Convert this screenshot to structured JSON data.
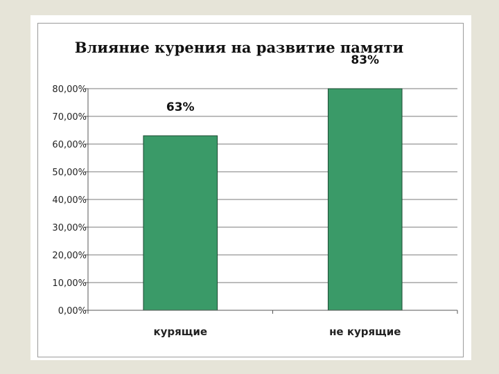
{
  "chart_data": {
    "type": "bar",
    "title": "Влияние курения на развитие памяти",
    "categories": [
      "курящие",
      "не курящие"
    ],
    "values": [
      63,
      83
    ],
    "data_labels": [
      "63%",
      "83%"
    ],
    "ylim": [
      0,
      80
    ],
    "yticks": [
      0,
      10,
      20,
      30,
      40,
      50,
      60,
      70,
      80
    ],
    "ytick_labels": [
      "0,00%",
      "10,00%",
      "20,00%",
      "30,00%",
      "40,00%",
      "50,00%",
      "60,00%",
      "70,00%",
      "80,00%"
    ],
    "xlabel": "",
    "ylabel": "",
    "grid": true,
    "legend": false,
    "bar_color": "#3a9a68"
  }
}
